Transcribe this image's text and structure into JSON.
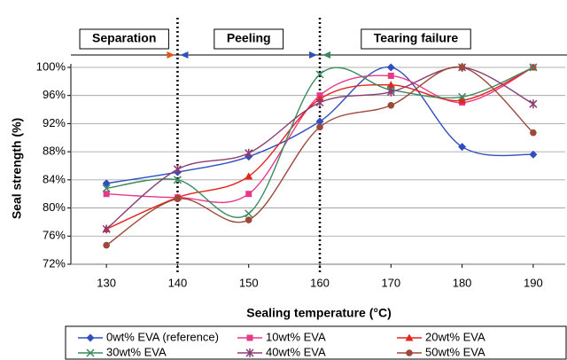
{
  "chart_data": {
    "type": "line",
    "xlabel": "Sealing temperature (°C)",
    "ylabel": "Seal strength (%)",
    "x": [
      130,
      140,
      150,
      160,
      170,
      180,
      190
    ],
    "xlim": [
      125,
      194.5
    ],
    "xticks": [
      130,
      140,
      150,
      160,
      170,
      180,
      190
    ],
    "ylim": [
      72,
      100.5
    ],
    "yticks": [
      {
        "value": 72,
        "label": "72%"
      },
      {
        "value": 76,
        "label": "76%"
      },
      {
        "value": 80,
        "label": "80%"
      },
      {
        "value": 84,
        "label": "84%"
      },
      {
        "value": 88,
        "label": "88%"
      },
      {
        "value": 92,
        "label": "92%"
      },
      {
        "value": 96,
        "label": "96%"
      },
      {
        "value": 100,
        "label": "100%"
      }
    ],
    "dividers": [
      140,
      160
    ],
    "regions": [
      "Separation",
      "Peeling",
      "Tearing failure"
    ],
    "series": [
      {
        "name": "0wt% EVA (reference)",
        "color": "#2f4fbf",
        "marker": "diamond",
        "values": [
          83.5,
          85.1,
          87.3,
          92.3,
          100,
          88.7,
          87.6
        ]
      },
      {
        "name": "10wt% EVA",
        "color": "#e8388a",
        "marker": "square",
        "values": [
          82,
          81.5,
          82,
          96,
          98.8,
          95,
          100
        ]
      },
      {
        "name": "20wt% EVA",
        "color": "#e5241c",
        "marker": "triangle",
        "values": [
          77,
          81.5,
          84.5,
          95.5,
          97.5,
          95.3,
          100
        ]
      },
      {
        "name": "30wt% EVA",
        "color": "#3a8a5c",
        "marker": "x",
        "values": [
          82.8,
          84,
          79.2,
          99,
          96.8,
          95.8,
          100
        ]
      },
      {
        "name": "40wt% EVA",
        "color": "#8a3d72",
        "marker": "asterisk",
        "values": [
          77,
          85.5,
          87.8,
          95,
          96.5,
          100,
          94.8
        ]
      },
      {
        "name": "50wt% EVA",
        "color": "#9a4a3a",
        "marker": "circle",
        "values": [
          74.7,
          81.3,
          78.3,
          91.5,
          94.6,
          100,
          90.7
        ]
      }
    ]
  }
}
